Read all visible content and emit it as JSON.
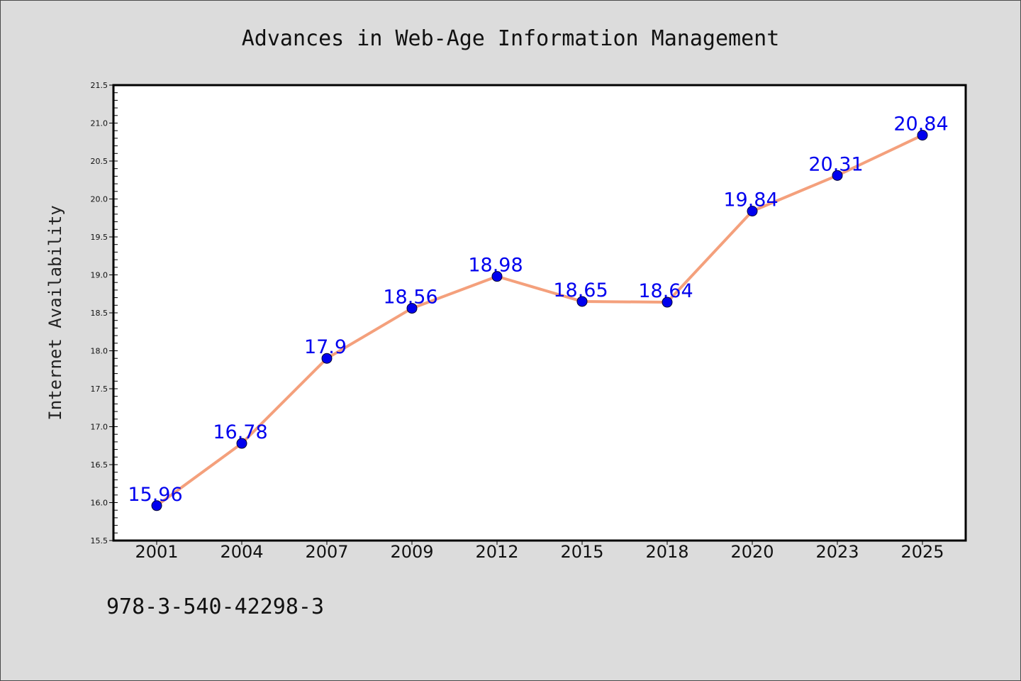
{
  "chart_data": {
    "type": "line",
    "title": "Advances in Web-Age Information Management",
    "xlabel": "",
    "ylabel": "Internet Availability",
    "categories": [
      "2001",
      "2004",
      "2007",
      "2009",
      "2012",
      "2015",
      "2018",
      "2020",
      "2023",
      "2025"
    ],
    "series": [
      {
        "values": [
          15.96,
          16.78,
          17.9,
          18.56,
          18.98,
          18.65,
          18.64,
          19.84,
          20.31,
          20.84
        ],
        "labels": [
          "15.96",
          "16.78",
          "17.9",
          "18.56",
          "18.98",
          "18.65",
          "18.64",
          "19.84",
          "20.31",
          "20.84"
        ],
        "line_color": "#f4a07c",
        "marker_color": "#0000ee",
        "label_color": "#0000ee"
      }
    ],
    "ylim": [
      15.5,
      21.5
    ],
    "yticks": [
      "15.5",
      "16.0",
      "16.5",
      "17.0",
      "17.5",
      "18.0",
      "18.5",
      "19.0",
      "19.5",
      "20.0",
      "20.5",
      "21.0",
      "21.5"
    ],
    "grid": false,
    "legend": "none",
    "background_color": "#dcdcdc",
    "plot_background_color": "#ffffff"
  },
  "footer": {
    "isbn": "978-3-540-42298-3"
  }
}
